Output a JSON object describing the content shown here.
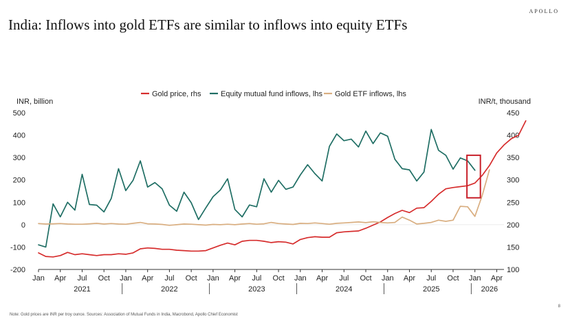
{
  "brand": "APOLLO",
  "title": "India: Inflows into gold ETFs are similar to inflows into equity ETFs",
  "footnote": "Note: Gold prices are INR per troy ounce. Sources: Association of Mutual Funds in India, Macrobond, Apollo Chief Economist",
  "page_number": "8",
  "chart_data": {
    "type": "line",
    "left_axis_label": "INR, billion",
    "right_axis_label": "INR/t, thousand",
    "ylim_left": [
      -200,
      500
    ],
    "ylim_right": [
      100,
      450
    ],
    "yticks_left": [
      "500",
      "400",
      "300",
      "200",
      "100",
      "0",
      "-100",
      "-200"
    ],
    "yticks_right": [
      "450",
      "400",
      "350",
      "300",
      "250",
      "200",
      "150",
      "100"
    ],
    "x_ticks": [
      "Jan",
      "Apr",
      "Jul",
      "Oct",
      "Jan",
      "Apr",
      "Jul",
      "Oct",
      "Jan",
      "Apr",
      "Jul",
      "Oct",
      "Jan",
      "Apr",
      "Jul",
      "Oct",
      "Jan",
      "Apr",
      "Jul",
      "Oct",
      "Jan",
      "Apr"
    ],
    "year_labels": [
      "2021",
      "2022",
      "2023",
      "2024",
      "2025",
      "2026"
    ],
    "x_start": "2021-01",
    "legend_position": "top",
    "highlight": {
      "from": "2025-12",
      "to": "2026-01",
      "ylim_left": [
        120,
        310
      ]
    },
    "series": [
      {
        "name": "Gold price, rhs",
        "axis": "right",
        "color": "#d62c2c",
        "values": [
          137,
          129,
          128,
          131,
          138,
          133,
          135,
          133,
          131,
          133,
          133,
          135,
          134,
          137,
          146,
          148,
          147,
          145,
          145,
          143,
          142,
          141,
          141,
          142,
          148,
          154,
          159,
          155,
          163,
          165,
          165,
          163,
          160,
          162,
          161,
          157,
          167,
          171,
          173,
          172,
          172,
          182,
          184,
          185,
          186,
          192,
          199,
          206,
          216,
          225,
          232,
          227,
          237,
          238,
          252,
          268,
          280,
          283,
          285,
          287,
          293,
          310,
          332,
          360,
          378,
          392,
          400,
          432
        ]
      },
      {
        "name": "Equity mutual fund inflows, lhs",
        "axis": "left",
        "color": "#1f6e64",
        "values": [
          -90,
          -100,
          93,
          35,
          100,
          65,
          225,
          90,
          87,
          57,
          117,
          250,
          152,
          198,
          285,
          168,
          188,
          160,
          87,
          60,
          145,
          98,
          23,
          75,
          125,
          155,
          205,
          68,
          35,
          88,
          80,
          205,
          145,
          198,
          158,
          168,
          222,
          268,
          228,
          195,
          350,
          405,
          375,
          382,
          347,
          418,
          362,
          410,
          395,
          292,
          250,
          245,
          195,
          235,
          425,
          332,
          310,
          248,
          298,
          285,
          243
        ]
      },
      {
        "name": "Gold ETF inflows, lhs",
        "axis": "left",
        "color": "#d9ae80",
        "values": [
          5,
          3,
          4,
          5,
          3,
          2,
          2,
          4,
          6,
          3,
          5,
          3,
          2,
          6,
          10,
          4,
          3,
          1,
          -3,
          0,
          3,
          2,
          0,
          -2,
          1,
          0,
          2,
          0,
          3,
          5,
          2,
          4,
          10,
          5,
          3,
          1,
          6,
          5,
          8,
          5,
          2,
          6,
          8,
          10,
          12,
          9,
          13,
          10,
          8,
          10,
          34,
          20,
          3,
          6,
          10,
          20,
          15,
          20,
          82,
          80,
          37,
          130,
          245
        ]
      }
    ]
  }
}
